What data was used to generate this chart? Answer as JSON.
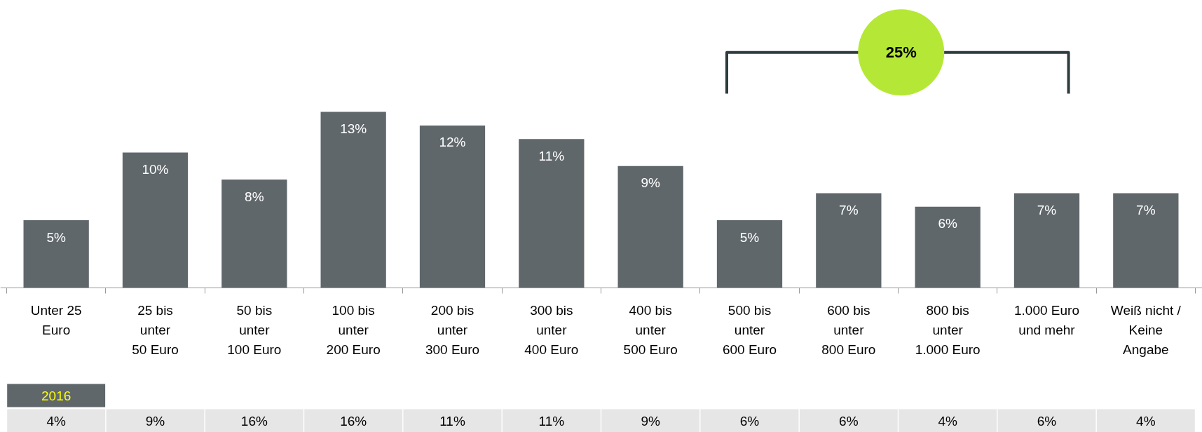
{
  "chart_data": {
    "type": "bar",
    "categories": [
      "Unter 25\nEuro",
      "25 bis\nunter\n50 Euro",
      "50 bis\nunter\n100 Euro",
      "100 bis\nunter\n200 Euro",
      "200 bis\nunter\n300 Euro",
      "300 bis\nunter\n400 Euro",
      "400 bis\nunter\n500 Euro",
      "500 bis\nunter\n600 Euro",
      "600 bis\nunter\n800 Euro",
      "800 bis\nunter\n1.000 Euro",
      "1.000 Euro\nund mehr",
      "Weiß nicht /\nKeine\nAngabe"
    ],
    "series": [
      {
        "color": "#5f676b",
        "values": [
          5,
          10,
          8,
          13,
          12,
          11,
          9,
          5,
          7,
          6,
          7,
          7
        ],
        "value_labels": [
          "5%",
          "10%",
          "8%",
          "13%",
          "12%",
          "11%",
          "9%",
          "5%",
          "7%",
          "6%",
          "7%",
          "7%"
        ]
      }
    ],
    "annotations": [
      "25%",
      "2016",
      "4%",
      "9%",
      "16%",
      "16%",
      "11%",
      "11%",
      "9%",
      "6%",
      "6%",
      "4%",
      "6%",
      "4%"
    ]
  }
}
